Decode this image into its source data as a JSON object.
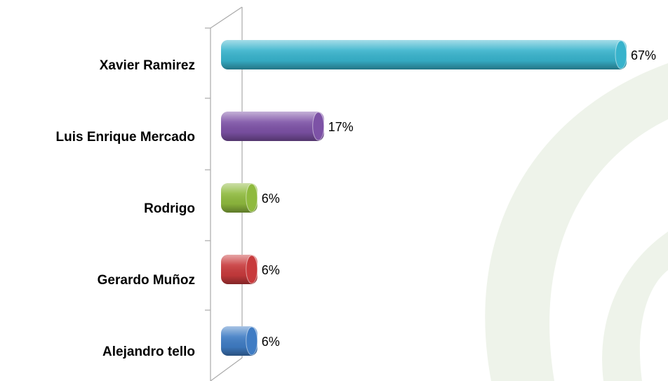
{
  "chart_data": {
    "type": "bar",
    "orientation": "horizontal",
    "categories": [
      "Xavier Ramirez",
      "Luis Enrique Mercado",
      "Rodrigo",
      "Gerardo Muñoz",
      "Alejandro tello"
    ],
    "values": [
      67,
      17,
      6,
      6,
      6
    ],
    "value_labels": [
      "67%",
      "17%",
      "6%",
      "6%",
      "6%"
    ],
    "colors": [
      "#38b3cc",
      "#7d52a6",
      "#8fba3e",
      "#c83a3c",
      "#3f7cc4"
    ]
  }
}
